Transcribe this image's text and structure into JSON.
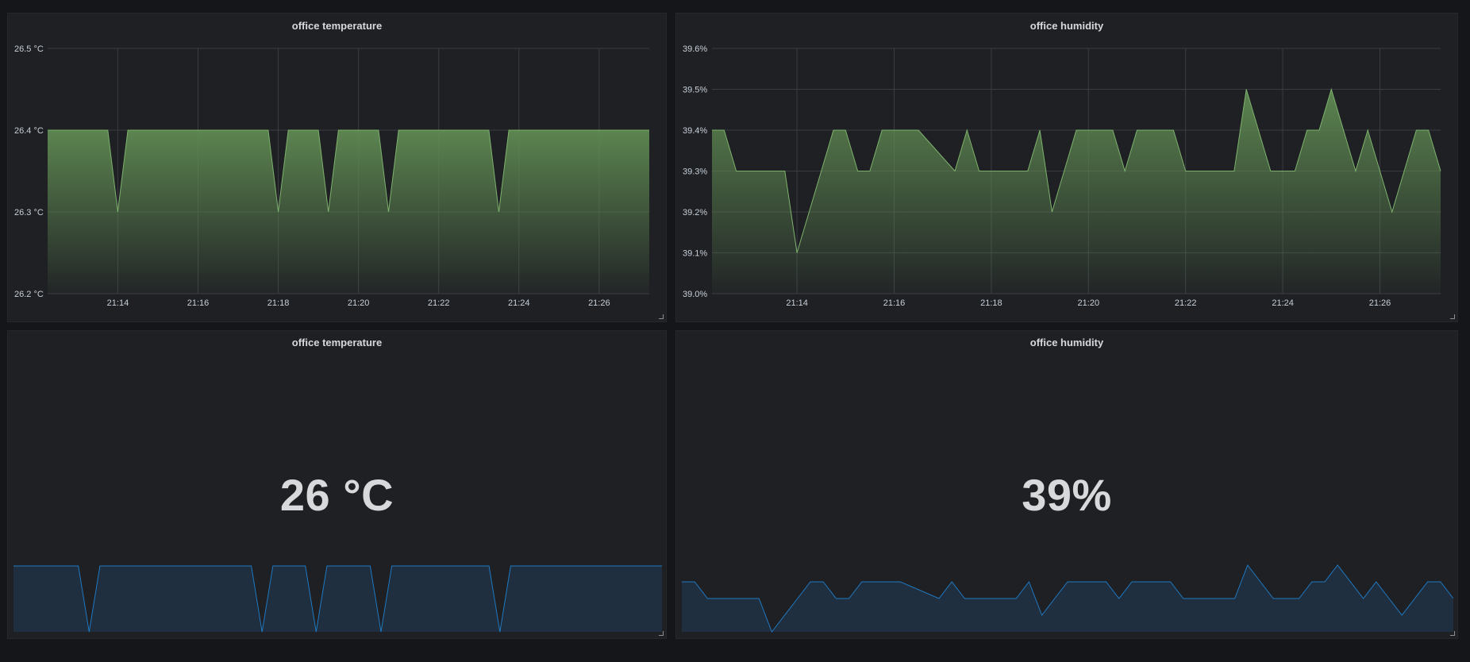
{
  "panels": {
    "temp_graph": {
      "title": "office temperature"
    },
    "hum_graph": {
      "title": "office humidity"
    },
    "temp_stat": {
      "title": "office temperature",
      "value": "26 °C"
    },
    "hum_stat": {
      "title": "office humidity",
      "value": "39%"
    }
  },
  "colors": {
    "graph_line": "#7eb26d",
    "graph_fill_top": "#5f8a52",
    "spark_line": "#1f78c1",
    "spark_fill": "#1f2f3f"
  },
  "chart_data": [
    {
      "id": "temp_graph",
      "type": "area",
      "x_ticks": [
        "21:14",
        "21:16",
        "21:18",
        "21:20",
        "21:22",
        "21:24",
        "21:26"
      ],
      "y_ticks": [
        "26.2 °C",
        "26.3 °C",
        "26.4 °C",
        "26.5 °C"
      ],
      "ylim": [
        26.2,
        26.5
      ],
      "xlim": [
        "21:12:15",
        "21:27:15"
      ],
      "grid": true,
      "series": [
        {
          "x": [
            "21:12:15",
            "21:13:45",
            "21:14:00",
            "21:14:15",
            "21:17:45",
            "21:18:00",
            "21:18:15",
            "21:19:00",
            "21:19:15",
            "21:19:30",
            "21:20:30",
            "21:20:45",
            "21:21:00",
            "21:23:15",
            "21:23:30",
            "21:23:45",
            "21:27:15"
          ],
          "values": [
            26.4,
            26.4,
            26.3,
            26.4,
            26.4,
            26.3,
            26.4,
            26.4,
            26.3,
            26.4,
            26.4,
            26.3,
            26.4,
            26.4,
            26.3,
            26.4,
            26.4
          ]
        }
      ]
    },
    {
      "id": "hum_graph",
      "type": "area",
      "x_ticks": [
        "21:14",
        "21:16",
        "21:18",
        "21:20",
        "21:22",
        "21:24",
        "21:26"
      ],
      "y_ticks": [
        "39.0%",
        "39.1%",
        "39.2%",
        "39.3%",
        "39.4%",
        "39.5%",
        "39.6%"
      ],
      "ylim": [
        39.0,
        39.6
      ],
      "xlim": [
        "21:12:15",
        "21:27:15"
      ],
      "grid": true,
      "series": [
        {
          "x": [
            "21:12:15",
            "21:12:30",
            "21:12:45",
            "21:13:00",
            "21:13:45",
            "21:14:00",
            "21:14:30",
            "21:14:45",
            "21:15:00",
            "21:15:15",
            "21:15:30",
            "21:15:45",
            "21:16:00",
            "21:16:30",
            "21:17:15",
            "21:17:30",
            "21:17:45",
            "21:18:00",
            "21:18:45",
            "21:19:00",
            "21:19:15",
            "21:19:30",
            "21:19:45",
            "21:20:30",
            "21:20:45",
            "21:21:00",
            "21:21:45",
            "21:22:00",
            "21:23:00",
            "21:23:15",
            "21:23:30",
            "21:23:45",
            "21:24:15",
            "21:24:30",
            "21:24:45",
            "21:25:00",
            "21:25:30",
            "21:25:45",
            "21:26:00",
            "21:26:15",
            "21:26:45",
            "21:27:00",
            "21:27:15"
          ],
          "values": [
            39.4,
            39.4,
            39.3,
            39.3,
            39.3,
            39.1,
            39.3,
            39.4,
            39.4,
            39.3,
            39.3,
            39.4,
            39.4,
            39.4,
            39.3,
            39.4,
            39.3,
            39.3,
            39.3,
            39.4,
            39.2,
            39.3,
            39.4,
            39.4,
            39.3,
            39.4,
            39.4,
            39.3,
            39.3,
            39.5,
            39.4,
            39.3,
            39.3,
            39.4,
            39.4,
            39.5,
            39.3,
            39.4,
            39.3,
            39.2,
            39.4,
            39.4,
            39.3
          ]
        }
      ]
    }
  ]
}
